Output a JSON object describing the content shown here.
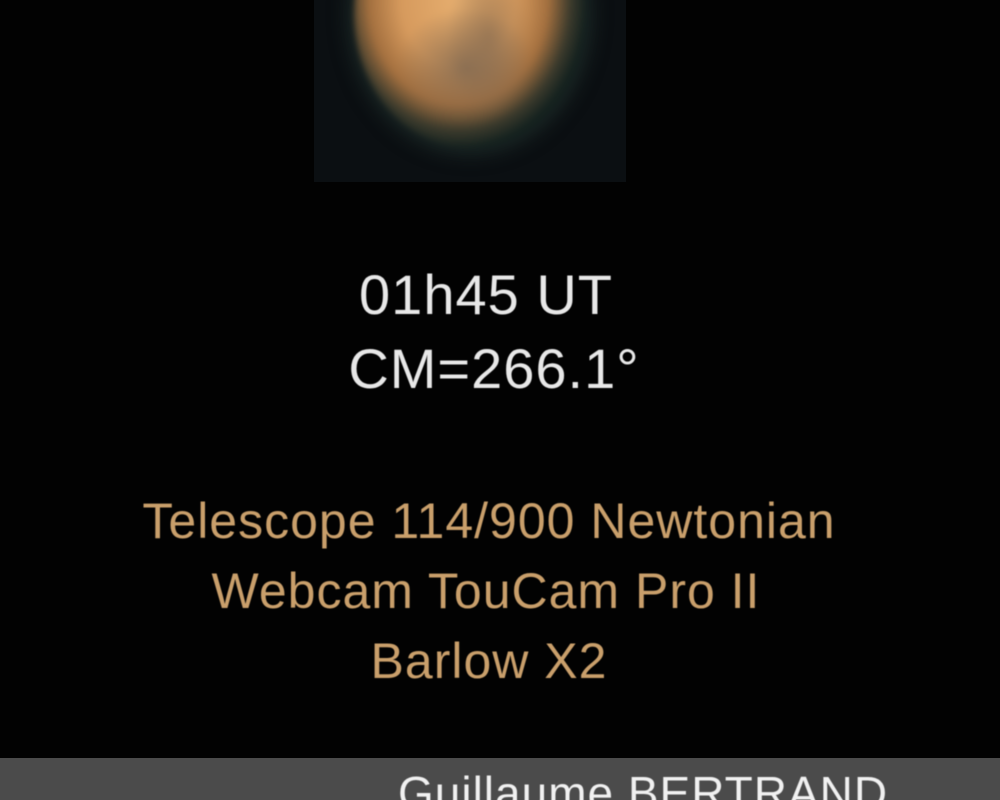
{
  "observation": {
    "time": "01h45 UT",
    "central_meridian": "CM=266.1°"
  },
  "equipment": {
    "telescope": "Telescope 114/900 Newtonian",
    "camera": "Webcam TouCam Pro II",
    "barlow": "Barlow X2"
  },
  "credit": {
    "author": "Guillaume BERTRAND"
  },
  "colors": {
    "background": "#020202",
    "observation_text": "#e8e8e8",
    "equipment_text": "#c99f6b",
    "footer_bar": "#4b4b4b"
  }
}
